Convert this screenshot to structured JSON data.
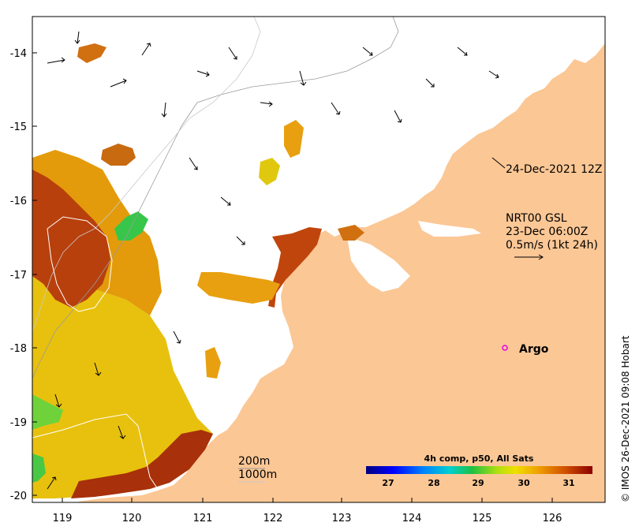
{
  "map": {
    "axes": {
      "x_ticks": [
        "119",
        "120",
        "121",
        "122",
        "123",
        "124",
        "125",
        "126"
      ],
      "y_ticks": [
        "-14",
        "-15",
        "-16",
        "-17",
        "-18",
        "-19",
        "-20"
      ]
    },
    "annotations": {
      "date_label": "24-Dec-2021 12Z",
      "current_product": "NRT00 GSL",
      "current_time": "23-Dec 06:00Z",
      "current_scale": "0.5m/s (1kt 24h)",
      "argo_label": "Argo",
      "depth_200": "200m",
      "depth_1000": "1000m"
    },
    "colorbar": {
      "title": "4h comp, p50, All Sats",
      "ticks": [
        "27",
        "28",
        "29",
        "30",
        "31"
      ]
    },
    "credit": "© IMOS 26-Dec-2021 09:08 Hobart",
    "colors": {
      "land": "#fbc795",
      "sst_hot": "#b8330d",
      "sst_warm": "#f3a40b",
      "sst_mild": "#e8d80e",
      "sst_cool": "#37c64a",
      "argo_marker": "#e600e6"
    }
  }
}
